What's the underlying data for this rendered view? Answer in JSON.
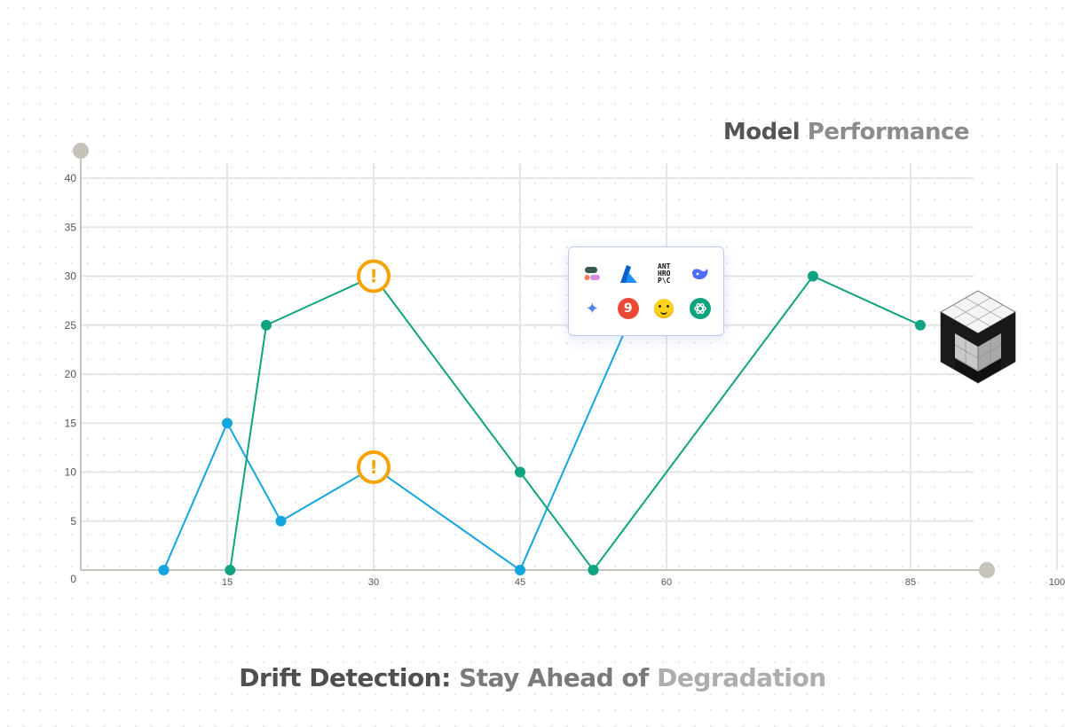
{
  "title": {
    "part1": "Model",
    "part2": "Performance"
  },
  "caption": {
    "part1": "Drift Detection:",
    "part2": "Stay Ahead of",
    "part3": "Degradation"
  },
  "chart_data": {
    "type": "line",
    "x_ticks": [
      "15",
      "30",
      "45",
      "60",
      "85",
      "100"
    ],
    "y_ticks": [
      "0",
      "5",
      "10",
      "15",
      "20",
      "25",
      "30",
      "35",
      "40"
    ],
    "ylim": [
      0,
      40
    ],
    "grid": true,
    "series": [
      {
        "color": "#13a6de",
        "points": [
          [
            8.5,
            0
          ],
          [
            15,
            15
          ],
          [
            20.5,
            5
          ],
          [
            30,
            10.5
          ],
          [
            45,
            0
          ],
          [
            56,
            25
          ]
        ],
        "alerts": [
          [
            30,
            10.5
          ]
        ]
      },
      {
        "color": "#0fa37f",
        "points": [
          [
            15.3,
            0
          ],
          [
            19,
            25
          ],
          [
            30,
            30
          ],
          [
            45,
            10
          ],
          [
            52.5,
            0
          ],
          [
            75,
            30
          ],
          [
            86,
            25
          ]
        ],
        "alerts": [
          [
            30,
            30
          ]
        ]
      }
    ],
    "alert_symbol": "!",
    "alert_color": "#f5a300",
    "axis_color": "#c4c2b9"
  },
  "logos": {
    "items": [
      {
        "name": "cohere-icon"
      },
      {
        "name": "azure-icon"
      },
      {
        "name": "anthropic-icon",
        "text": "ANT\nHRO\nP\\C"
      },
      {
        "name": "deepseek-icon"
      },
      {
        "name": "gemini-icon",
        "glyph": "✦"
      },
      {
        "name": "perplexity-icon",
        "glyph": "9"
      },
      {
        "name": "huggingface-icon"
      },
      {
        "name": "openai-icon"
      }
    ]
  },
  "brand_logo": {
    "name": "brand-cube-logo"
  }
}
